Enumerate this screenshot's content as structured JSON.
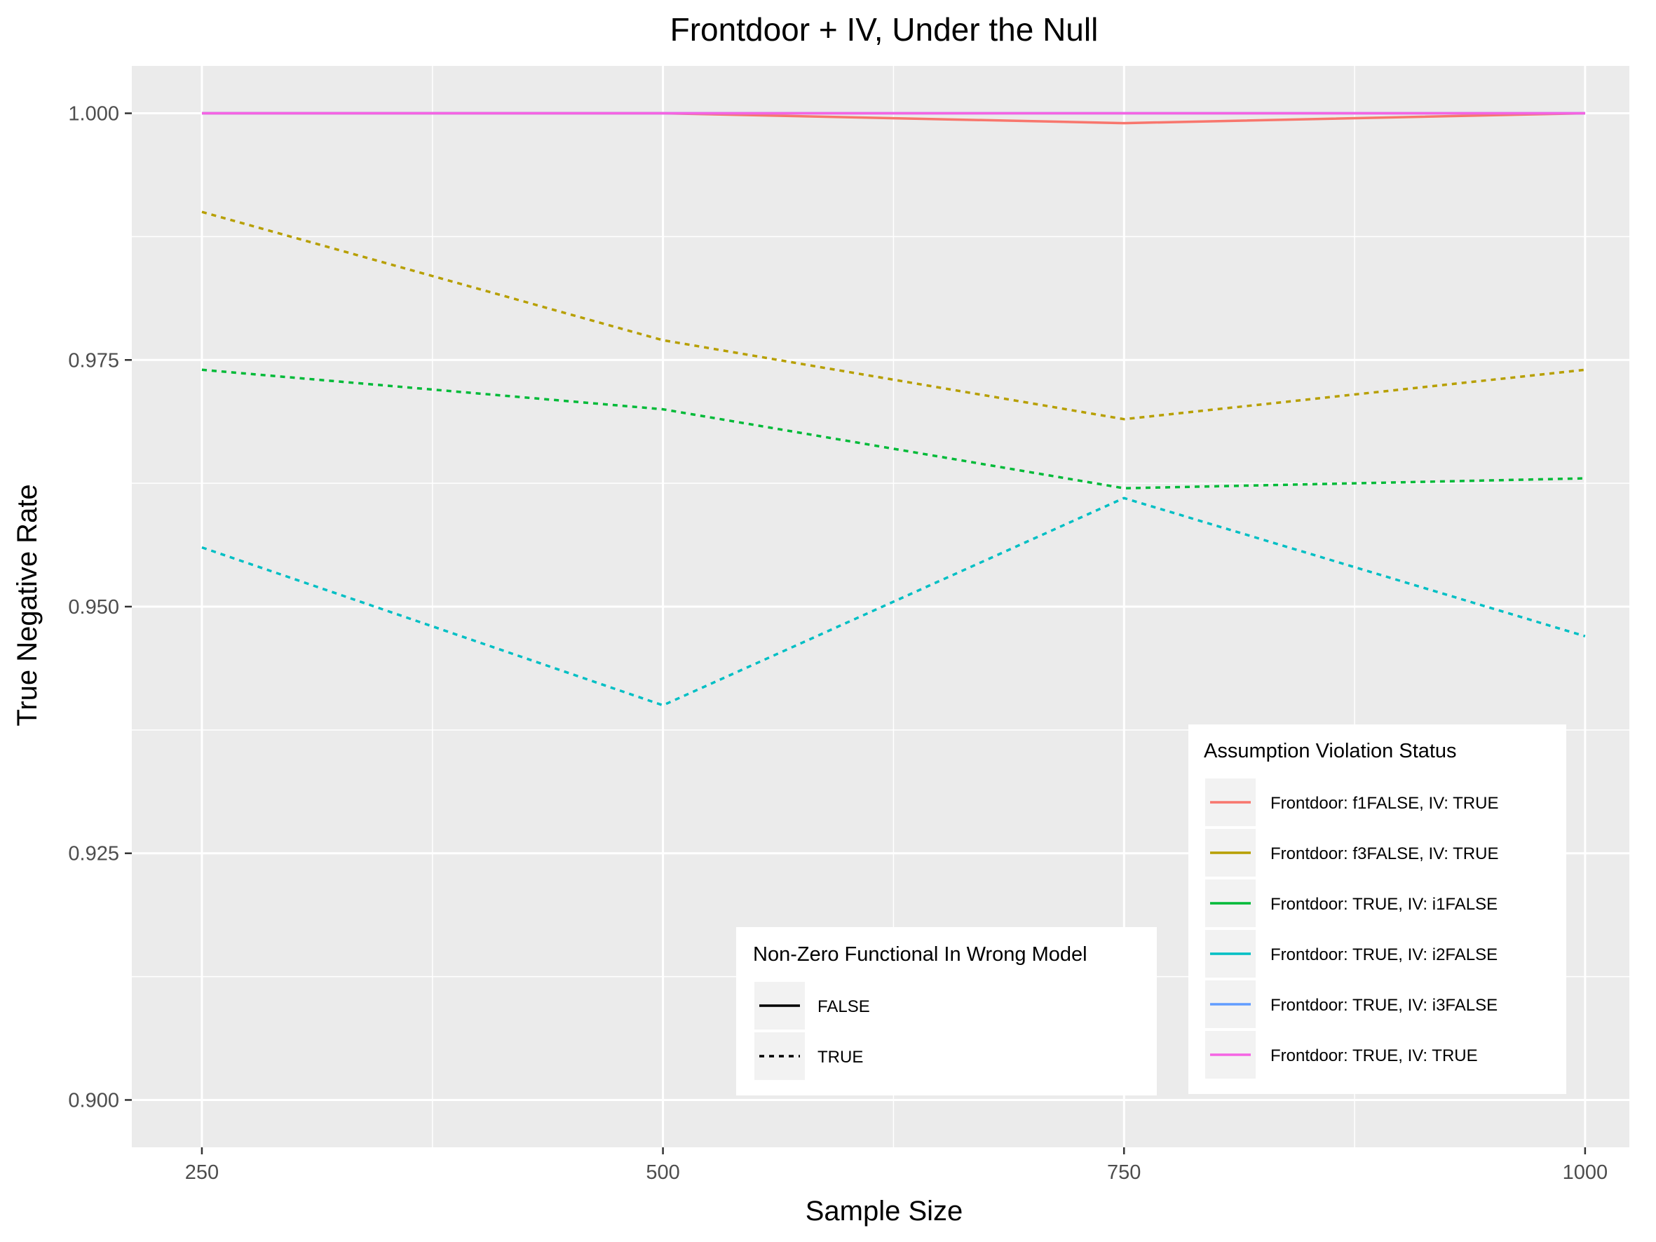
{
  "chart_data": {
    "type": "line",
    "title": "Frontdoor + IV, Under the Null",
    "xlabel": "Sample Size",
    "ylabel": "True Negative Rate",
    "x": [
      250,
      500,
      750,
      1000
    ],
    "x_ticks": [
      "250",
      "500",
      "750",
      "1000"
    ],
    "xlim": [
      212,
      1024
    ],
    "y_ticks": [
      "0.900",
      "0.925",
      "0.950",
      "0.975",
      "1.000"
    ],
    "ylim": [
      0.8952,
      1.0048
    ],
    "grid": true,
    "legend_color": {
      "title": "Assumption Violation Status",
      "placement": "bottom-right"
    },
    "legend_linetype": {
      "title": "Non-Zero Functional In Wrong Model",
      "placement": "bottom-center",
      "items": [
        {
          "label": "FALSE",
          "dash": "solid"
        },
        {
          "label": "TRUE",
          "dash": "dashed"
        }
      ]
    },
    "series": [
      {
        "name": "Frontdoor: f1FALSE, IV: TRUE",
        "color": "#F8766D",
        "dash": "solid",
        "values": [
          1.0,
          1.0,
          0.999,
          1.0
        ]
      },
      {
        "name": "Frontdoor: f3FALSE, IV: TRUE",
        "color": "#B79F00",
        "dash": "dashed",
        "values": [
          0.99,
          0.977,
          0.969,
          0.974
        ]
      },
      {
        "name": "Frontdoor: TRUE, IV: i1FALSE",
        "color": "#00BA38",
        "dash": "dashed",
        "values": [
          0.974,
          0.97,
          0.962,
          0.963
        ]
      },
      {
        "name": "Frontdoor: TRUE, IV: i2FALSE",
        "color": "#00BFC4",
        "dash": "dashed",
        "values": [
          0.956,
          0.94,
          0.961,
          0.947
        ]
      },
      {
        "name": "Frontdoor: TRUE, IV: i3FALSE",
        "color": "#619CFF",
        "dash": "solid",
        "values": [
          1.0,
          1.0,
          1.0,
          1.0
        ]
      },
      {
        "name": "Frontdoor: TRUE, IV: TRUE",
        "color": "#F564E3",
        "dash": "solid",
        "values": [
          1.0,
          1.0,
          1.0,
          1.0
        ]
      }
    ]
  }
}
